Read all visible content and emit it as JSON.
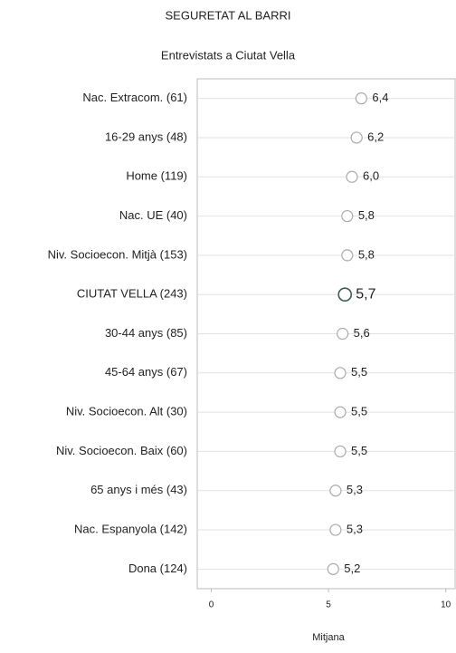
{
  "chart_data": {
    "type": "dot",
    "title": "SEGURETAT AL BARRI",
    "subtitle": "Entrevistats a Ciutat Vella",
    "x_label": "Mitjana",
    "categories": [
      "Nac. Extracom. (61)",
      "16-29 anys (48)",
      "Home (119)",
      "Nac. UE (40)",
      "Niv. Socioecon. Mitjà (153)",
      "CIUTAT VELLA (243)",
      "30-44 anys (85)",
      "45-64 anys (67)",
      "Niv. Socioecon. Alt (30)",
      "Niv. Socioecon. Baix (60)",
      "65 anys i més (43)",
      "Nac. Espanyola (142)",
      "Dona (124)"
    ],
    "values": [
      6.4,
      6.2,
      6.0,
      5.8,
      5.8,
      5.7,
      5.6,
      5.5,
      5.5,
      5.5,
      5.3,
      5.3,
      5.2
    ],
    "value_labels": [
      "6,4",
      "6,2",
      "6,0",
      "5,8",
      "5,8",
      "5,7",
      "5,6",
      "5,5",
      "5,5",
      "5,5",
      "5,3",
      "5,3",
      "5,2"
    ],
    "point_colors": [
      "#aaaaaa",
      "#aaaaaa",
      "#aaaaaa",
      "#aaaaaa",
      "#aaaaaa",
      "#3d5c52",
      "#aaaaaa",
      "#aaaaaa",
      "#aaaaaa",
      "#aaaaaa",
      "#aaaaaa",
      "#aaaaaa",
      "#aaaaaa"
    ],
    "text_colors": [
      "#222222",
      "#222222",
      "#222222",
      "#222222",
      "#222222",
      "#d9412b",
      "#222222",
      "#222222",
      "#222222",
      "#222222",
      "#222222",
      "#222222",
      "#222222"
    ],
    "xlim": [
      -0.6,
      10.4
    ],
    "xticks": [
      0,
      5,
      10
    ],
    "grid": true
  }
}
